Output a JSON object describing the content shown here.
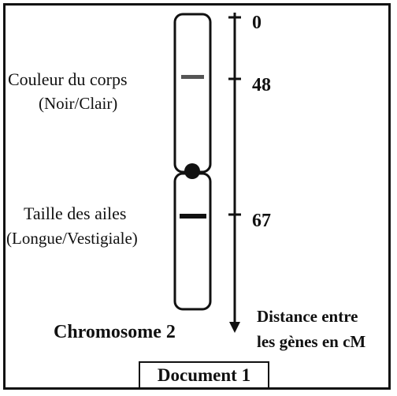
{
  "document": {
    "title": "Document 1"
  },
  "chromosome": {
    "name": "Chromosome 2"
  },
  "genes": [
    {
      "name": "Couleur du corps",
      "alleles": "(Noir/Clair)",
      "position_cM": 48
    },
    {
      "name": "Taille des ailes",
      "alleles": "(Longue/Vestigiale)",
      "position_cM": 67
    }
  ],
  "axis": {
    "ticks": [
      "0",
      "48",
      "67"
    ],
    "caption_line1": "Distance entre",
    "caption_line2": "les gènes en cM"
  }
}
